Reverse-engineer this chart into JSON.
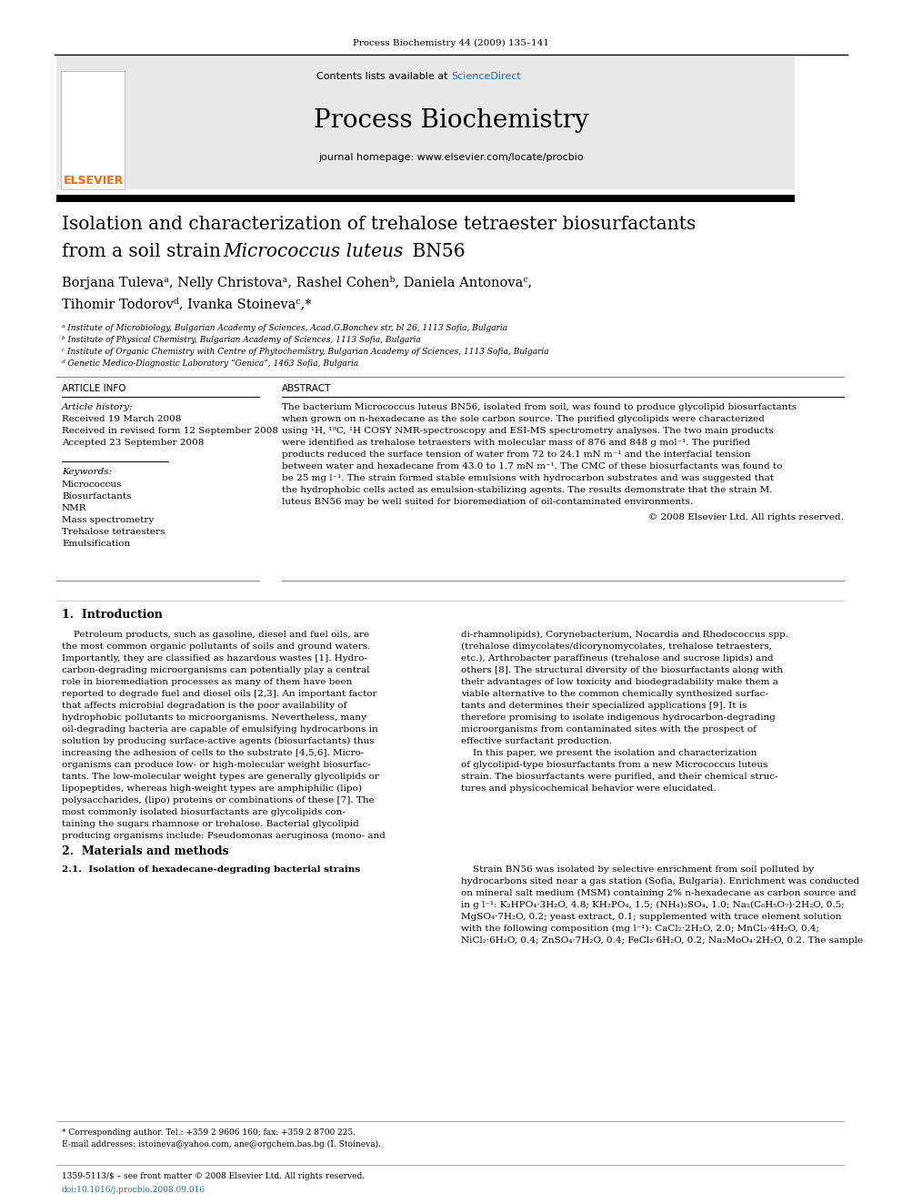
{
  "page_width": 9.92,
  "page_height": 13.23,
  "background_color": "#ffffff",
  "journal_line": "Process Biochemistry 44 (2009) 135–141",
  "header_bg": "#e8e8e8",
  "elsevier_color": "#ff6600",
  "sciencedirect_color": "#1a6faf",
  "title_line1": "Isolation and characterization of trehalose tetraester biosurfactants",
  "title_line2_pre": "from a soil strain ",
  "title_italic": "Micrococcus luteus",
  "title_end": " BN56",
  "authors": "Borjana Tulevaᵃ, Nelly Christovaᵃ, Rashel Cohenᵇ, Daniela Antonovaᶜ,",
  "authors2": "Tihomir Todorovᵈ, Ivanka Stoinevaᶜ,*",
  "affil_a": "ᵃ Institute of Microbiology, Bulgarian Academy of Sciences, Acad.G.Bonchev str, bl 26, 1113 Sofia, Bulgaria",
  "affil_b": "ᵇ Institute of Physical Chemistry, Bulgarian Academy of Sciences, 1113 Sofia, Bulgaria",
  "affil_c": "ᶜ Institute of Organic Chemistry with Centre of Phytochemistry, Bulgarian Academy of Sciences, 1113 Sofia, Bulgaria",
  "affil_d": "ᵈ Genetic Medico-Diagnostic Laboratory “Genica”, 1463 Sofia, Bulgaria",
  "article_info_header": "ARTICLE INFO",
  "abstract_header": "ABSTRACT",
  "article_history_label": "Article history:",
  "received1": "Received 19 March 2008",
  "received2": "Received in revised form 12 September 2008",
  "accepted": "Accepted 23 September 2008",
  "keywords_label": "Keywords:",
  "keywords": [
    "Micrococcus",
    "Biosurfactants",
    "NMR",
    "Mass spectrometry",
    "Trehalose tetraesters",
    "Emulsification"
  ],
  "abstract_lines": [
    "The bacterium Micrococcus luteus BN56, isolated from soil, was found to produce glycolipid biosurfactants",
    "when grown on n-hexadecane as the sole carbon source. The purified glycolipids were characterized",
    "using ¹H, ¹⁹C, ¹H COSY NMR-spectroscopy and ESI-MS spectrometry analyses. The two main products",
    "were identified as trehalose tetraesters with molecular mass of 876 and 848 g mol⁻¹. The purified",
    "products reduced the surface tension of water from 72 to 24.1 mN m⁻¹ and the interfacial tension",
    "between water and hexadecane from 43.0 to 1.7 mN m⁻¹. The CMC of these biosurfactants was found to",
    "be 25 mg l⁻¹. The strain formed stable emulsions with hydrocarbon substrates and was suggested that",
    "the hydrophobic cells acted as emulsion-stabilizing agents. The results demonstrate that the strain M.",
    "luteus BN56 may be well suited for bioremediation of oil-contaminated environments."
  ],
  "copyright": "© 2008 Elsevier Ltd. All rights reserved.",
  "section1_header": "1.  Introduction",
  "intro_col1_lines": [
    "    Petroleum products, such as gasoline, diesel and fuel oils, are",
    "the most common organic pollutants of soils and ground waters.",
    "Importantly, they are classified as hazardous wastes [1]. Hydro-",
    "carbon-degrading microorganisms can potentially play a central",
    "role in bioremediation processes as many of them have been",
    "reported to degrade fuel and diesel oils [2,3]. An important factor",
    "that affects microbial degradation is the poor availability of",
    "hydrophobic pollutants to microorganisms. Nevertheless, many",
    "oil-degrading bacteria are capable of emulsifying hydrocarbons in",
    "solution by producing surface-active agents (biosurfactants) thus",
    "increasing the adhesion of cells to the substrate [4,5,6]. Micro-",
    "organisms can produce low- or high-molecular weight biosurfac-",
    "tants. The low-molecular weight types are generally glycolipids or",
    "lipopeptides, whereas high-weight types are amphiphilic (lipo)",
    "polysaccharides, (lipo) proteins or combinations of these [7]. The",
    "most commonly isolated biosurfactants are glycolipids con-",
    "taining the sugars rhamnose or trehalose. Bacterial glycolipid",
    "producing organisms include: Pseudomonas aeruginosa (mono- and"
  ],
  "intro_col2_lines": [
    "di-rhamnolipids), Corynebacterium, Nocardia and Rhodococcus spp.",
    "(trehalose dimycolates/dicorynomycolates, trehalose tetraesters,",
    "etc.), Arthrobacter paraffineus (trehalose and sucrose lipids) and",
    "others [8]. The structural diversity of the biosurfactants along with",
    "their advantages of low toxicity and biodegradability make them a",
    "viable alternative to the common chemically synthesized surfac-",
    "tants and determines their specialized applications [9]. It is",
    "therefore promising to isolate indigenous hydrocarbon-degrading",
    "microorganisms from contaminated sites with the prospect of",
    "effective surfactant production.",
    "    In this paper, we present the isolation and characterization",
    "of glycolipid-type biosurfactants from a new Micrococcus luteus",
    "strain. The biosurfactants were purified, and their chemical struc-",
    "tures and physicochemical behavior were elucidated."
  ],
  "section2_header": "2.  Materials and methods",
  "section21_header": "2.1.  Isolation of hexadecane-degrading bacterial strains",
  "sec21_col2_lines": [
    "    Strain BN56 was isolated by selective enrichment from soil polluted by",
    "hydrocarbons sited near a gas station (Sofia, Bulgaria). Enrichment was conducted",
    "on mineral salt medium (MSM) containing 2% n-hexadecane as carbon source and",
    "in g l⁻¹: K₂HPO₄·3H₂O, 4.8; KH₂PO₄, 1.5; (NH₄)₂SO₄, 1.0; Na₂(C₆H₅O₇)·2H₂O, 0.5;",
    "MgSO₄·7H₂O, 0.2; yeast extract, 0.1; supplemented with trace element solution",
    "with the following composition (mg l⁻¹): CaCl₂·2H₂O, 2.0; MnCl₂·4H₂O, 0.4;",
    "NiCl₂·6H₂O, 0.4; ZnSO₄·7H₂O, 0.4; FeCl₃·6H₂O, 0.2; Na₂MoO₄·2H₂O, 0.2. The sample"
  ],
  "footnote_star": "* Corresponding author. Tel.: +359 2 9606 160; fax: +359 2 8700 225.",
  "footnote_email": "E-mail addresses: istoineva@yahoo.com, ane@orgchem.bas.bg (I. Stoineva).",
  "footer_issn": "1359-5113/$ – see front matter © 2008 Elsevier Ltd. All rights reserved.",
  "footer_doi": "doi:10.1016/j.procbio.2008.09.016"
}
